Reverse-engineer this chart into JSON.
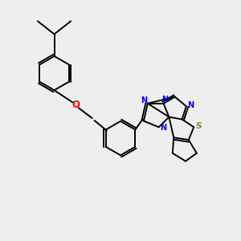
{
  "background_color": "#eeeeee",
  "bond_color": "#000000",
  "n_color": "#0000ff",
  "o_color": "#ff0000",
  "s_color": "#888800",
  "figsize": [
    3.0,
    3.0
  ],
  "dpi": 100,
  "bond_lw": 1.4,
  "font_size": 7.0,
  "xlim": [
    0,
    10
  ],
  "ylim": [
    0,
    10
  ]
}
